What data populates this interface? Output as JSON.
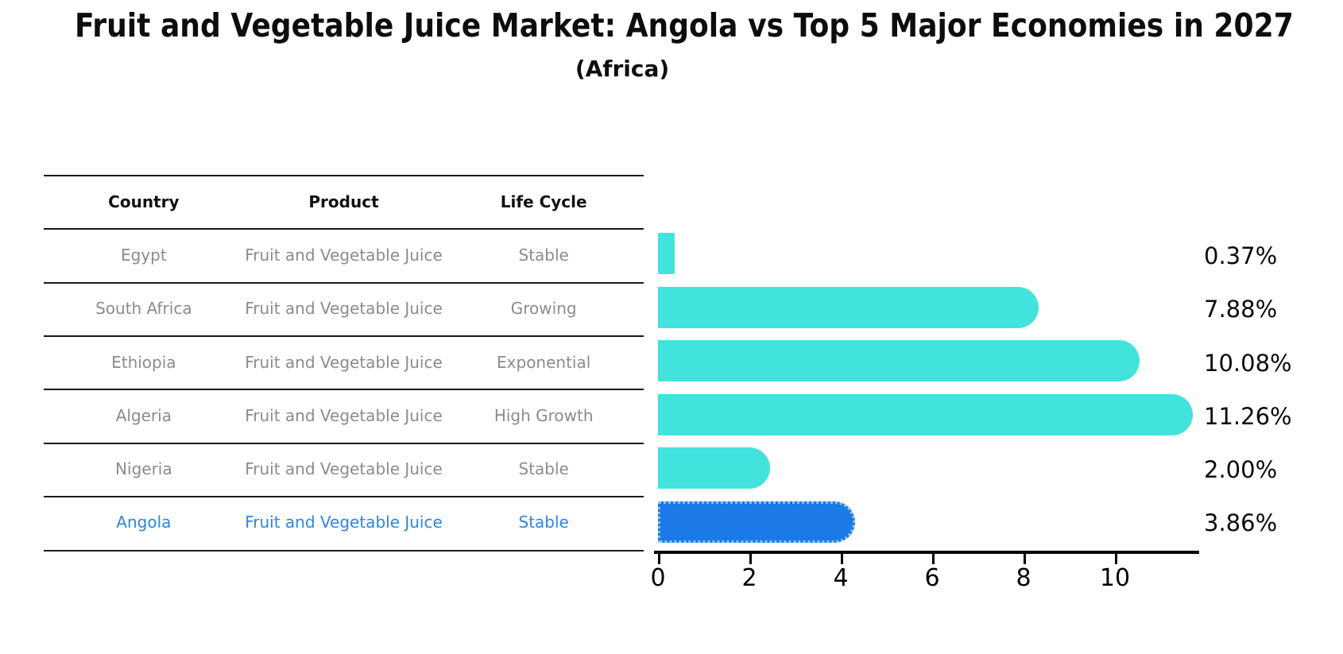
{
  "header": {
    "title": "Fruit and Vegetable Juice Market: Angola vs Top 5 Major Economies in 2027",
    "subtitle": "(Africa)"
  },
  "table": {
    "columns": [
      "Country",
      "Product",
      "Life Cycle"
    ],
    "rows": [
      {
        "country": "Egypt",
        "product": "Fruit and Vegetable Juice",
        "life_cycle": "Stable"
      },
      {
        "country": "South Africa",
        "product": "Fruit and Vegetable Juice",
        "life_cycle": "Growing"
      },
      {
        "country": "Ethiopia",
        "product": "Fruit and Vegetable Juice",
        "life_cycle": "Exponential"
      },
      {
        "country": "Algeria",
        "product": "Fruit and Vegetable Juice",
        "life_cycle": "High Growth"
      },
      {
        "country": "Nigeria",
        "product": "Fruit and Vegetable Juice",
        "life_cycle": "Stable"
      },
      {
        "country": "Angola",
        "product": "Fruit and Vegetable Juice",
        "life_cycle": "Stable"
      }
    ],
    "highlighted_row": "Angola"
  },
  "chart_data": {
    "type": "bar",
    "orientation": "horizontal",
    "title": "Fruit and Vegetable Juice Market: Angola vs Top 5 Major Economies in 2027",
    "subtitle": "(Africa)",
    "categories": [
      "Egypt",
      "South Africa",
      "Ethiopia",
      "Algeria",
      "Nigeria",
      "Angola"
    ],
    "values": [
      0.37,
      7.88,
      10.08,
      11.26,
      2.0,
      3.86
    ],
    "value_labels": [
      "0.37%",
      "7.88%",
      "10.08%",
      "11.26%",
      "2.00%",
      "3.86%"
    ],
    "xlabel": "",
    "ylabel": "",
    "xlim": [
      0,
      11.84
    ],
    "xticks": [
      0,
      2,
      4,
      6,
      8,
      10
    ],
    "grid": false,
    "legend": false,
    "bar_color": "#42e3dc",
    "highlight_index": 5,
    "highlight_category": "Angola",
    "highlight_color": "#1b79e8",
    "highlight_border_color": "#8cc3f5"
  },
  "colors": {
    "accent_cyan": "#42e3dc",
    "accent_blue": "#1b79e8",
    "row_text_gray": "#8b8b8b",
    "highlight_text_blue": "#2e86dc",
    "axis_black": "#000000"
  }
}
